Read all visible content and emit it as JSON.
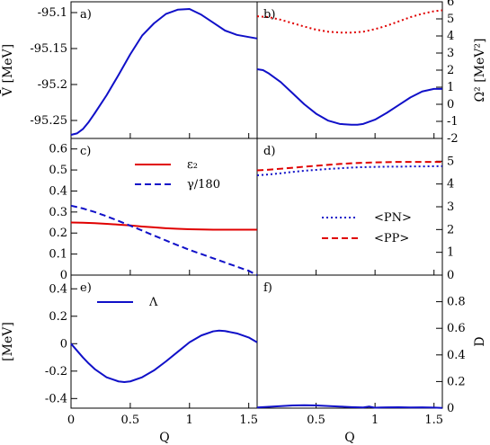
{
  "chart_data": [
    {
      "id": "a",
      "type": "line",
      "panel_label": "a)",
      "ylabel": "V̄ [MeV]",
      "xlim": [
        0,
        1.5708
      ],
      "ylim": [
        -95.275,
        -95.085
      ],
      "yticks": [
        -95.25,
        -95.2,
        -95.15,
        -95.1
      ],
      "series": [
        {
          "color": "#1010c8",
          "dash": "solid",
          "x": [
            0,
            0.05,
            0.1,
            0.15,
            0.2,
            0.3,
            0.4,
            0.5,
            0.6,
            0.7,
            0.8,
            0.9,
            1.0,
            1.1,
            1.2,
            1.3,
            1.4,
            1.5,
            1.57
          ],
          "y": [
            -95.27,
            -95.268,
            -95.262,
            -95.252,
            -95.24,
            -95.215,
            -95.187,
            -95.158,
            -95.132,
            -95.115,
            -95.102,
            -95.096,
            -95.095,
            -95.103,
            -95.114,
            -95.125,
            -95.131,
            -95.134,
            -95.136
          ]
        }
      ]
    },
    {
      "id": "b",
      "type": "line",
      "panel_label": "b)",
      "ylabel": "Ω² [MeV²]",
      "xlim": [
        0,
        1.5708
      ],
      "ylim": [
        -2,
        6
      ],
      "yticks": [
        -2,
        -1,
        0,
        1,
        2,
        3,
        4,
        5,
        6
      ],
      "series": [
        {
          "color": "#e00000",
          "dash": "dotted",
          "x": [
            0,
            0.1,
            0.2,
            0.3,
            0.4,
            0.5,
            0.6,
            0.7,
            0.8,
            0.9,
            1.0,
            1.1,
            1.2,
            1.3,
            1.4,
            1.5,
            1.57
          ],
          "y": [
            5.15,
            5.1,
            4.95,
            4.75,
            4.55,
            4.37,
            4.25,
            4.2,
            4.2,
            4.25,
            4.4,
            4.6,
            4.85,
            5.1,
            5.3,
            5.45,
            5.5
          ]
        },
        {
          "color": "#1010c8",
          "dash": "solid",
          "x": [
            0,
            0.05,
            0.1,
            0.2,
            0.3,
            0.4,
            0.5,
            0.6,
            0.7,
            0.8,
            0.85,
            0.9,
            1.0,
            1.1,
            1.2,
            1.3,
            1.4,
            1.5,
            1.57
          ],
          "y": [
            2.05,
            2.0,
            1.8,
            1.3,
            0.65,
            0.0,
            -0.55,
            -0.95,
            -1.15,
            -1.2,
            -1.2,
            -1.15,
            -0.9,
            -0.5,
            -0.05,
            0.4,
            0.75,
            0.9,
            0.9
          ]
        }
      ]
    },
    {
      "id": "c",
      "type": "line",
      "panel_label": "c)",
      "xlim": [
        0,
        1.5708
      ],
      "ylim": [
        0,
        0.65
      ],
      "yticks": [
        0,
        0.1,
        0.2,
        0.3,
        0.4,
        0.5,
        0.6
      ],
      "legend": "top-right",
      "series": [
        {
          "name": "ε₂",
          "color": "#e00000",
          "dash": "solid",
          "x": [
            0,
            0.1,
            0.2,
            0.3,
            0.4,
            0.5,
            0.6,
            0.7,
            0.8,
            0.9,
            1.0,
            1.1,
            1.2,
            1.3,
            1.4,
            1.5,
            1.57
          ],
          "y": [
            0.25,
            0.249,
            0.247,
            0.244,
            0.24,
            0.236,
            0.231,
            0.227,
            0.223,
            0.22,
            0.218,
            0.217,
            0.216,
            0.216,
            0.216,
            0.216,
            0.216
          ]
        },
        {
          "name": "γ/180",
          "color": "#1010c8",
          "dash": "dashed",
          "x": [
            0,
            0.1,
            0.2,
            0.3,
            0.4,
            0.5,
            0.6,
            0.7,
            0.8,
            0.9,
            1.0,
            1.1,
            1.2,
            1.3,
            1.4,
            1.5,
            1.57
          ],
          "y": [
            0.33,
            0.317,
            0.3,
            0.28,
            0.258,
            0.235,
            0.212,
            0.188,
            0.165,
            0.142,
            0.12,
            0.1,
            0.08,
            0.06,
            0.04,
            0.02,
            0.0
          ]
        }
      ]
    },
    {
      "id": "d",
      "type": "line",
      "panel_label": "d)",
      "xlim": [
        0,
        1.5708
      ],
      "ylim": [
        0,
        6
      ],
      "yticks": [
        0,
        1,
        2,
        3,
        4,
        5
      ],
      "legend": "right",
      "series": [
        {
          "name": "<PN>",
          "color": "#1010c8",
          "dash": "dotted",
          "x": [
            0,
            0.1,
            0.2,
            0.3,
            0.4,
            0.5,
            0.6,
            0.7,
            0.8,
            0.9,
            1.0,
            1.1,
            1.2,
            1.3,
            1.4,
            1.5,
            1.57
          ],
          "y": [
            4.38,
            4.42,
            4.47,
            4.53,
            4.58,
            4.62,
            4.66,
            4.69,
            4.72,
            4.74,
            4.75,
            4.76,
            4.76,
            4.77,
            4.77,
            4.78,
            4.78
          ]
        },
        {
          "name": "<PP>",
          "color": "#e00000",
          "dash": "dashed",
          "x": [
            0,
            0.1,
            0.2,
            0.3,
            0.4,
            0.5,
            0.6,
            0.7,
            0.8,
            0.9,
            1.0,
            1.1,
            1.2,
            1.3,
            1.4,
            1.5,
            1.57
          ],
          "y": [
            4.6,
            4.63,
            4.67,
            4.71,
            4.76,
            4.8,
            4.84,
            4.88,
            4.91,
            4.93,
            4.95,
            4.96,
            4.97,
            4.97,
            4.97,
            4.97,
            4.97
          ]
        }
      ]
    },
    {
      "id": "e",
      "type": "line",
      "panel_label": "e)",
      "ylabel": "[MeV]",
      "xlabel": "Q",
      "xlim": [
        0,
        1.5708
      ],
      "ylim": [
        -0.47,
        0.5
      ],
      "yticks": [
        -0.4,
        -0.2,
        0,
        0.2,
        0.4
      ],
      "xticks": [
        0,
        0.5,
        1,
        1.5
      ],
      "legend": "top-left",
      "series": [
        {
          "name": "Λ",
          "color": "#1010c8",
          "dash": "solid",
          "x": [
            0,
            0.05,
            0.1,
            0.15,
            0.2,
            0.3,
            0.4,
            0.45,
            0.5,
            0.6,
            0.7,
            0.8,
            0.9,
            1.0,
            1.1,
            1.2,
            1.25,
            1.3,
            1.4,
            1.5,
            1.57
          ],
          "y": [
            0.0,
            -0.05,
            -0.1,
            -0.145,
            -0.185,
            -0.245,
            -0.275,
            -0.28,
            -0.275,
            -0.245,
            -0.195,
            -0.13,
            -0.06,
            0.01,
            0.06,
            0.09,
            0.095,
            0.092,
            0.075,
            0.045,
            0.01
          ]
        }
      ]
    },
    {
      "id": "f",
      "type": "line",
      "panel_label": "f)",
      "ylabel": "D",
      "xlabel": "Q",
      "xlim": [
        0,
        1.5708
      ],
      "ylim": [
        0,
        1
      ],
      "yticks": [
        0,
        0.2,
        0.4,
        0.6,
        0.8
      ],
      "xticks": [
        0.5,
        1,
        1.5
      ],
      "series": [
        {
          "color": "#1010c8",
          "dash": "solid",
          "x": [
            0,
            0.1,
            0.2,
            0.3,
            0.4,
            0.5,
            0.6,
            0.7,
            0.8,
            0.9,
            0.95,
            1.0,
            1.05,
            1.1,
            1.2,
            1.3,
            1.4,
            1.5,
            1.57
          ],
          "y": [
            0.005,
            0.01,
            0.015,
            0.02,
            0.022,
            0.02,
            0.016,
            0.012,
            0.008,
            0.005,
            0.012,
            0.003,
            0.005,
            0.006,
            0.007,
            0.005,
            0.006,
            0.004,
            0.002
          ]
        }
      ]
    }
  ]
}
